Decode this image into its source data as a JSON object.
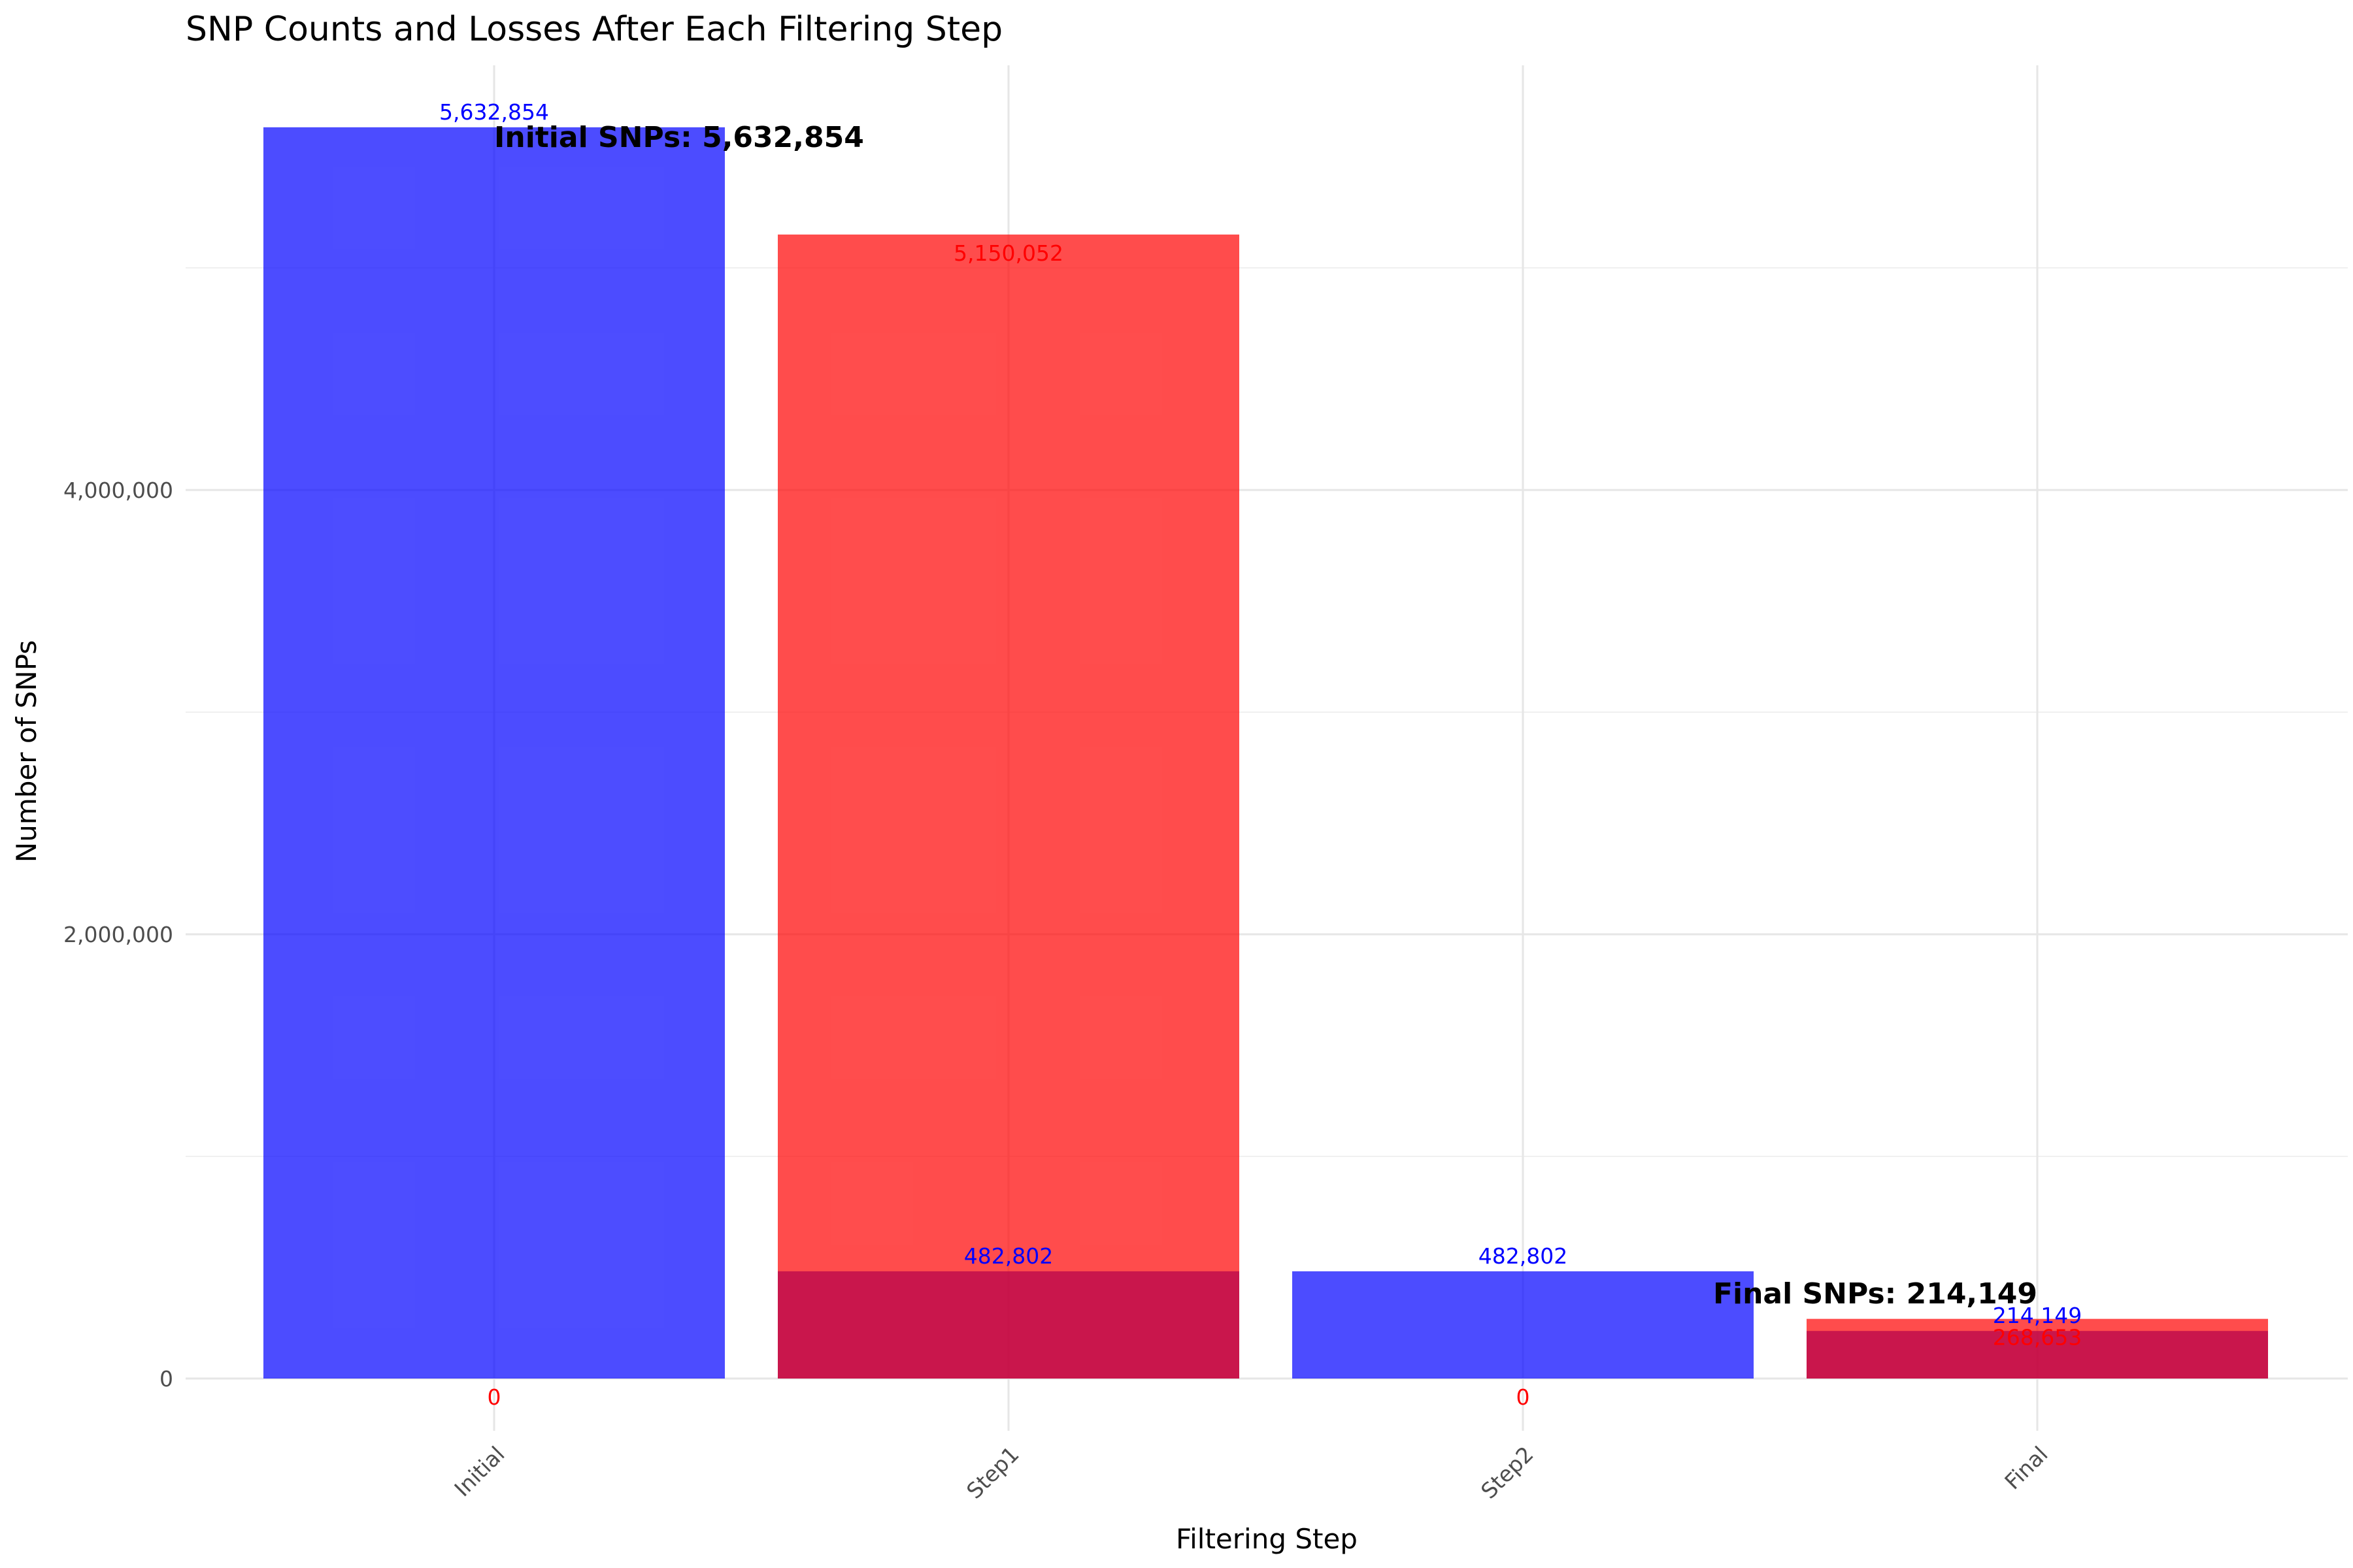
{
  "chart_data": {
    "type": "bar",
    "title": "SNP Counts and Losses After Each Filtering Step",
    "xlabel": "Filtering Step",
    "ylabel": "Number of SNPs",
    "categories": [
      "Initial",
      "Step1",
      "Step2",
      "Final"
    ],
    "ylim": [
      0,
      5900000
    ],
    "y_ticks": [
      0,
      2000000,
      4000000
    ],
    "y_tick_labels": [
      "0",
      "2,000,000",
      "4,000,000"
    ],
    "grid": true,
    "legend": "none",
    "series": [
      {
        "name": "",
        "color": "#0000ff",
        "values": [
          5632854,
          482802,
          482802,
          214149
        ],
        "labels": [
          "5,632,854",
          "482,802",
          "482,802",
          "214,149"
        ]
      },
      {
        "name": "",
        "color": "#ff0000",
        "values": [
          0,
          5150052,
          0,
          268653
        ],
        "labels": [
          "0",
          "5,150,052",
          "0",
          "268,653"
        ]
      }
    ],
    "annotations": [
      {
        "text": "Initial SNPs: 5,632,854",
        "category": "Initial",
        "y": 5632854
      },
      {
        "text": "Final SNPs: 214,149",
        "category": "Final",
        "y": 214149
      }
    ]
  }
}
